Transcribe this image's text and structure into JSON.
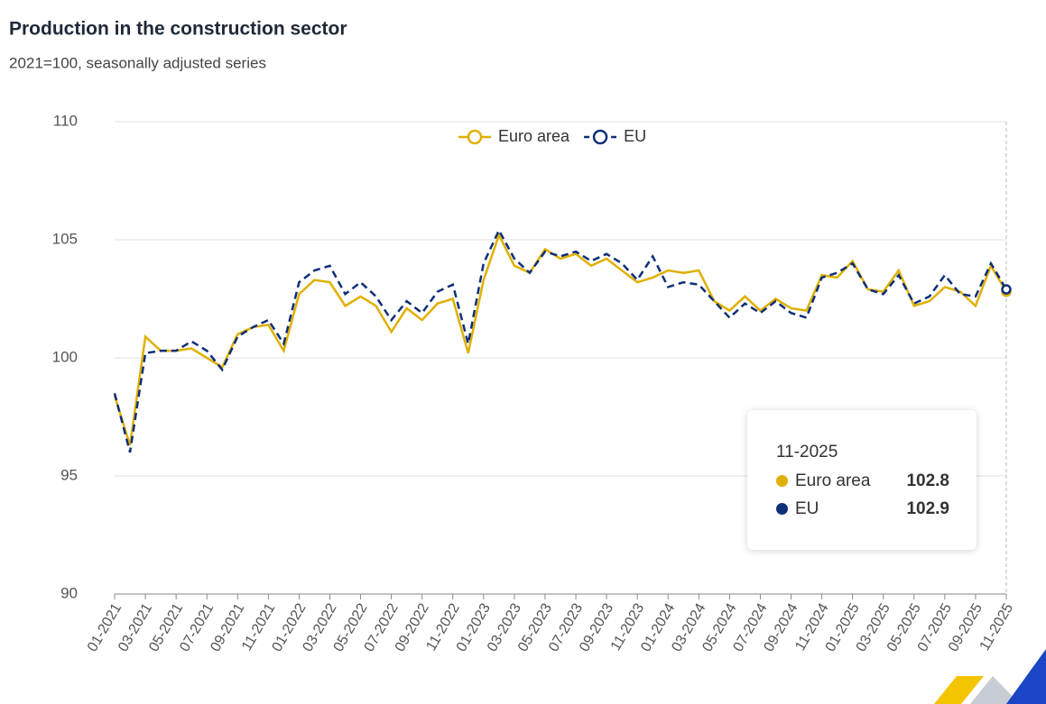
{
  "chart_data": {
    "type": "line",
    "title": "Production in the construction sector",
    "subtitle": "2021=100, seasonally adjusted series",
    "categories": [
      "01-2021",
      null,
      "03-2021",
      null,
      "05-2021",
      null,
      "07-2021",
      null,
      "09-2021",
      null,
      "11-2021",
      null,
      "01-2022",
      null,
      "03-2022",
      null,
      "05-2022",
      null,
      "07-2022",
      null,
      "09-2022",
      null,
      "11-2022",
      null,
      "01-2023",
      null,
      "03-2023",
      null,
      "05-2023",
      null,
      "07-2023",
      null,
      "09-2023",
      null,
      "11-2023",
      null,
      "01-2024",
      null,
      "03-2024",
      null,
      "05-2024",
      null,
      "07-2024",
      null,
      "09-2024",
      null,
      "11-2024",
      null,
      "01-2025",
      null,
      "03-2025",
      null,
      "05-2025",
      null,
      "07-2025",
      null,
      "09-2025",
      null,
      "11-2025"
    ],
    "series": [
      {
        "name": "Euro area",
        "color": "#e0b000",
        "dashed": false,
        "values": [
          98.4,
          96.3,
          100.9,
          100.3,
          100.3,
          100.4,
          100.0,
          99.6,
          101.0,
          101.3,
          101.4,
          100.3,
          102.7,
          103.3,
          103.2,
          102.2,
          102.6,
          102.2,
          101.1,
          102.1,
          101.6,
          102.3,
          102.5,
          100.2,
          103.3,
          105.2,
          103.9,
          103.6,
          104.6,
          104.2,
          104.4,
          103.9,
          104.2,
          103.7,
          103.2,
          103.4,
          103.7,
          103.6,
          103.7,
          102.4,
          102.0,
          102.6,
          102.0,
          102.5,
          102.1,
          102.0,
          103.5,
          103.4,
          104.1,
          102.9,
          102.8,
          103.7,
          102.2,
          102.4,
          103.0,
          102.8,
          102.2,
          103.9,
          102.8
        ]
      },
      {
        "name": "EU",
        "color": "#0e2f79",
        "dashed": true,
        "values": [
          98.5,
          96.0,
          100.2,
          100.3,
          100.3,
          100.7,
          100.3,
          99.5,
          100.9,
          101.3,
          101.6,
          100.6,
          103.2,
          103.7,
          103.9,
          102.7,
          103.2,
          102.6,
          101.6,
          102.4,
          101.9,
          102.8,
          103.1,
          100.6,
          104.0,
          105.4,
          104.2,
          103.6,
          104.5,
          104.3,
          104.5,
          104.1,
          104.4,
          104.0,
          103.3,
          104.3,
          103.0,
          103.2,
          103.1,
          102.4,
          101.7,
          102.3,
          101.9,
          102.4,
          101.9,
          101.7,
          103.4,
          103.6,
          104.0,
          102.9,
          102.7,
          103.5,
          102.3,
          102.6,
          103.5,
          102.7,
          102.6,
          104.0,
          102.9
        ]
      }
    ],
    "ylim": [
      90,
      110
    ],
    "yticks": [
      90,
      95,
      100,
      105,
      110
    ],
    "grid": true,
    "legend": "top"
  }
}
